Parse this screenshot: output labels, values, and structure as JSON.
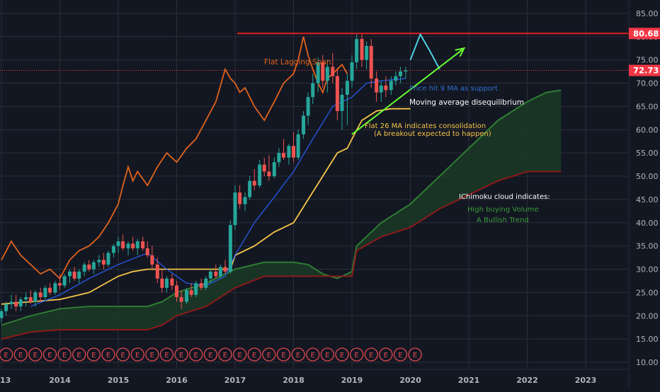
{
  "chart_data": {
    "type": "candlestick",
    "timeframe": "monthly",
    "xaxis": {
      "ticks": [
        "13",
        "2014",
        "2015",
        "2016",
        "2017",
        "2018",
        "2019",
        "2020",
        "2021",
        "2022",
        "2023"
      ]
    },
    "yaxis": {
      "ticks": [
        "85.00",
        "80.00",
        "75.00",
        "70.00",
        "65.00",
        "60.00",
        "55.00",
        "50.00",
        "45.00",
        "40.00",
        "35.00",
        "30.00",
        "25.00",
        "20.00",
        "15.00",
        "10.00"
      ],
      "range": [
        8.5,
        87.5
      ],
      "side": "right"
    },
    "price_labels": [
      {
        "value": 80.68,
        "text": "80.68",
        "color": "#f23645"
      },
      {
        "value": 72.73,
        "text": "72.73",
        "color": "#f23645"
      }
    ],
    "resistance_level": 80.68,
    "last_price": 72.73,
    "annotations": {
      "lagging_span": "Flat Lagging Span",
      "ma9_support": "Price hit 9 MA as support",
      "disequilibrium": "Moving average disequilibrium",
      "flat26_line1": "Flat 26 MA indicates consolidation",
      "flat26_line2": "(A breakout expected to happen)",
      "cloud_title": "IChimoku cloud indicates:",
      "cloud_line1": "High buying Volume",
      "cloud_line2": "A Bullish Trend"
    },
    "earnings_marker_label": "E",
    "colors": {
      "background": "#131722",
      "grid": "#2a2e39",
      "bull": "#26a69a",
      "bear": "#ef5350",
      "ma_fast": "#2962ff",
      "ma_slow": "#f7c548",
      "lagging_span": "#e0631c",
      "cloud_lead_a": "#2e7d32",
      "cloud_lead_b": "#8b1a1a",
      "cloud_fill": "#1b3a26",
      "projection": "#4dd0e1",
      "trend_arrow": "#66ff33",
      "resistance": "#e02020"
    },
    "candles": [
      {
        "x": 2013.0,
        "o": 19.5,
        "h": 21.5,
        "l": 18.5,
        "c": 21.0
      },
      {
        "x": 2013.08,
        "o": 21.0,
        "h": 23.0,
        "l": 20.0,
        "c": 22.5
      },
      {
        "x": 2013.17,
        "o": 22.5,
        "h": 24.5,
        "l": 21.5,
        "c": 23.0
      },
      {
        "x": 2013.25,
        "o": 23.0,
        "h": 24.5,
        "l": 21.0,
        "c": 22.0
      },
      {
        "x": 2013.33,
        "o": 22.0,
        "h": 24.0,
        "l": 21.0,
        "c": 23.5
      },
      {
        "x": 2013.42,
        "o": 23.5,
        "h": 25.0,
        "l": 22.0,
        "c": 24.0
      },
      {
        "x": 2013.5,
        "o": 24.0,
        "h": 25.5,
        "l": 22.5,
        "c": 23.0
      },
      {
        "x": 2013.58,
        "o": 23.0,
        "h": 25.5,
        "l": 22.0,
        "c": 25.0
      },
      {
        "x": 2013.67,
        "o": 25.0,
        "h": 26.0,
        "l": 23.0,
        "c": 24.0
      },
      {
        "x": 2013.75,
        "o": 24.0,
        "h": 26.5,
        "l": 23.5,
        "c": 26.0
      },
      {
        "x": 2013.83,
        "o": 26.0,
        "h": 27.0,
        "l": 24.5,
        "c": 25.0
      },
      {
        "x": 2013.92,
        "o": 25.0,
        "h": 27.5,
        "l": 24.5,
        "c": 27.0
      },
      {
        "x": 2014.0,
        "o": 27.0,
        "h": 29.0,
        "l": 25.5,
        "c": 26.5
      },
      {
        "x": 2014.08,
        "o": 26.5,
        "h": 29.0,
        "l": 26.0,
        "c": 28.5
      },
      {
        "x": 2014.17,
        "o": 28.5,
        "h": 30.0,
        "l": 27.0,
        "c": 29.5
      },
      {
        "x": 2014.25,
        "o": 29.5,
        "h": 30.5,
        "l": 27.5,
        "c": 28.0
      },
      {
        "x": 2014.33,
        "o": 28.0,
        "h": 30.0,
        "l": 27.0,
        "c": 29.5
      },
      {
        "x": 2014.42,
        "o": 29.5,
        "h": 31.5,
        "l": 28.5,
        "c": 31.0
      },
      {
        "x": 2014.5,
        "o": 31.0,
        "h": 32.0,
        "l": 29.5,
        "c": 30.0
      },
      {
        "x": 2014.58,
        "o": 30.0,
        "h": 32.0,
        "l": 29.0,
        "c": 31.5
      },
      {
        "x": 2014.67,
        "o": 31.5,
        "h": 33.0,
        "l": 30.5,
        "c": 32.0
      },
      {
        "x": 2014.75,
        "o": 32.0,
        "h": 33.5,
        "l": 30.0,
        "c": 31.0
      },
      {
        "x": 2014.83,
        "o": 31.0,
        "h": 34.0,
        "l": 30.5,
        "c": 33.5
      },
      {
        "x": 2014.92,
        "o": 33.5,
        "h": 35.5,
        "l": 32.5,
        "c": 35.0
      },
      {
        "x": 2015.0,
        "o": 35.0,
        "h": 37.0,
        "l": 33.5,
        "c": 36.0
      },
      {
        "x": 2015.08,
        "o": 36.0,
        "h": 37.5,
        "l": 34.0,
        "c": 34.5
      },
      {
        "x": 2015.17,
        "o": 34.5,
        "h": 36.0,
        "l": 33.0,
        "c": 35.5
      },
      {
        "x": 2015.25,
        "o": 35.5,
        "h": 37.0,
        "l": 34.0,
        "c": 34.5
      },
      {
        "x": 2015.33,
        "o": 34.5,
        "h": 36.5,
        "l": 33.0,
        "c": 36.0
      },
      {
        "x": 2015.42,
        "o": 36.0,
        "h": 37.0,
        "l": 34.0,
        "c": 34.5
      },
      {
        "x": 2015.5,
        "o": 34.5,
        "h": 36.0,
        "l": 32.5,
        "c": 33.0
      },
      {
        "x": 2015.58,
        "o": 33.0,
        "h": 35.0,
        "l": 30.0,
        "c": 31.0
      },
      {
        "x": 2015.67,
        "o": 31.0,
        "h": 32.5,
        "l": 27.0,
        "c": 28.0
      },
      {
        "x": 2015.75,
        "o": 28.0,
        "h": 30.0,
        "l": 25.0,
        "c": 26.0
      },
      {
        "x": 2015.83,
        "o": 26.0,
        "h": 28.5,
        "l": 25.0,
        "c": 28.0
      },
      {
        "x": 2015.92,
        "o": 28.0,
        "h": 29.0,
        "l": 25.5,
        "c": 26.5
      },
      {
        "x": 2016.0,
        "o": 26.5,
        "h": 27.5,
        "l": 23.0,
        "c": 24.0
      },
      {
        "x": 2016.08,
        "o": 24.0,
        "h": 25.5,
        "l": 21.5,
        "c": 23.0
      },
      {
        "x": 2016.17,
        "o": 23.0,
        "h": 26.0,
        "l": 22.5,
        "c": 25.5
      },
      {
        "x": 2016.25,
        "o": 25.5,
        "h": 27.0,
        "l": 24.0,
        "c": 24.5
      },
      {
        "x": 2016.33,
        "o": 24.5,
        "h": 27.5,
        "l": 24.0,
        "c": 27.0
      },
      {
        "x": 2016.42,
        "o": 27.0,
        "h": 28.0,
        "l": 25.5,
        "c": 26.0
      },
      {
        "x": 2016.5,
        "o": 26.0,
        "h": 28.5,
        "l": 25.5,
        "c": 28.0
      },
      {
        "x": 2016.58,
        "o": 28.0,
        "h": 30.0,
        "l": 27.0,
        "c": 29.5
      },
      {
        "x": 2016.67,
        "o": 29.5,
        "h": 31.0,
        "l": 28.0,
        "c": 28.5
      },
      {
        "x": 2016.75,
        "o": 28.5,
        "h": 31.0,
        "l": 28.0,
        "c": 30.5
      },
      {
        "x": 2016.83,
        "o": 30.5,
        "h": 32.0,
        "l": 29.0,
        "c": 29.5
      },
      {
        "x": 2016.92,
        "o": 29.5,
        "h": 40.5,
        "l": 29.0,
        "c": 39.5
      },
      {
        "x": 2017.0,
        "o": 39.5,
        "h": 48.0,
        "l": 38.5,
        "c": 46.5
      },
      {
        "x": 2017.08,
        "o": 46.5,
        "h": 48.0,
        "l": 43.0,
        "c": 44.0
      },
      {
        "x": 2017.17,
        "o": 44.0,
        "h": 46.5,
        "l": 42.5,
        "c": 45.5
      },
      {
        "x": 2017.25,
        "o": 45.5,
        "h": 50.0,
        "l": 45.0,
        "c": 49.0
      },
      {
        "x": 2017.33,
        "o": 49.0,
        "h": 51.5,
        "l": 47.0,
        "c": 48.0
      },
      {
        "x": 2017.42,
        "o": 48.0,
        "h": 53.5,
        "l": 47.5,
        "c": 52.5
      },
      {
        "x": 2017.5,
        "o": 52.5,
        "h": 54.0,
        "l": 50.0,
        "c": 51.0
      },
      {
        "x": 2017.58,
        "o": 51.0,
        "h": 54.5,
        "l": 49.0,
        "c": 50.0
      },
      {
        "x": 2017.67,
        "o": 50.0,
        "h": 54.0,
        "l": 49.5,
        "c": 53.0
      },
      {
        "x": 2017.75,
        "o": 53.0,
        "h": 56.0,
        "l": 52.0,
        "c": 55.0
      },
      {
        "x": 2017.83,
        "o": 55.0,
        "h": 58.0,
        "l": 53.5,
        "c": 54.0
      },
      {
        "x": 2017.92,
        "o": 54.0,
        "h": 57.0,
        "l": 52.5,
        "c": 56.5
      },
      {
        "x": 2018.0,
        "o": 56.5,
        "h": 59.5,
        "l": 53.0,
        "c": 54.0
      },
      {
        "x": 2018.08,
        "o": 54.0,
        "h": 60.0,
        "l": 53.5,
        "c": 59.0
      },
      {
        "x": 2018.17,
        "o": 59.0,
        "h": 64.0,
        "l": 58.0,
        "c": 63.0
      },
      {
        "x": 2018.25,
        "o": 63.0,
        "h": 68.0,
        "l": 61.0,
        "c": 67.0
      },
      {
        "x": 2018.33,
        "o": 67.0,
        "h": 72.0,
        "l": 65.5,
        "c": 70.0
      },
      {
        "x": 2018.42,
        "o": 70.0,
        "h": 75.5,
        "l": 68.0,
        "c": 74.5
      },
      {
        "x": 2018.5,
        "o": 74.5,
        "h": 76.0,
        "l": 69.0,
        "c": 70.5
      },
      {
        "x": 2018.58,
        "o": 70.5,
        "h": 75.0,
        "l": 68.0,
        "c": 73.5
      },
      {
        "x": 2018.67,
        "o": 73.5,
        "h": 76.5,
        "l": 70.0,
        "c": 71.5
      },
      {
        "x": 2018.75,
        "o": 71.5,
        "h": 73.0,
        "l": 62.0,
        "c": 64.0
      },
      {
        "x": 2018.83,
        "o": 64.0,
        "h": 69.0,
        "l": 60.0,
        "c": 67.5
      },
      {
        "x": 2018.92,
        "o": 67.5,
        "h": 72.0,
        "l": 61.0,
        "c": 70.5
      },
      {
        "x": 2019.0,
        "o": 70.5,
        "h": 76.0,
        "l": 69.0,
        "c": 74.5
      },
      {
        "x": 2019.08,
        "o": 74.5,
        "h": 80.5,
        "l": 73.0,
        "c": 79.5
      },
      {
        "x": 2019.17,
        "o": 79.5,
        "h": 80.5,
        "l": 73.5,
        "c": 75.0
      },
      {
        "x": 2019.25,
        "o": 75.0,
        "h": 79.0,
        "l": 73.0,
        "c": 78.0
      },
      {
        "x": 2019.33,
        "o": 78.0,
        "h": 79.5,
        "l": 69.0,
        "c": 71.0
      },
      {
        "x": 2019.42,
        "o": 71.0,
        "h": 72.5,
        "l": 66.0,
        "c": 68.0
      },
      {
        "x": 2019.5,
        "o": 68.0,
        "h": 70.5,
        "l": 66.0,
        "c": 69.5
      },
      {
        "x": 2019.58,
        "o": 69.5,
        "h": 71.5,
        "l": 67.0,
        "c": 68.5
      },
      {
        "x": 2019.67,
        "o": 68.5,
        "h": 71.5,
        "l": 67.5,
        "c": 70.5
      },
      {
        "x": 2019.75,
        "o": 70.5,
        "h": 72.5,
        "l": 69.5,
        "c": 71.5
      },
      {
        "x": 2019.83,
        "o": 71.5,
        "h": 73.5,
        "l": 70.0,
        "c": 72.5
      },
      {
        "x": 2019.92,
        "o": 72.5,
        "h": 73.5,
        "l": 71.0,
        "c": 72.73
      }
    ],
    "ma9": [
      [
        2013.5,
        22
      ],
      [
        2014.0,
        24.5
      ],
      [
        2014.5,
        28
      ],
      [
        2015.0,
        31
      ],
      [
        2015.5,
        33.5
      ],
      [
        2015.83,
        30
      ],
      [
        2016.17,
        27
      ],
      [
        2016.5,
        26.5
      ],
      [
        2016.83,
        28.5
      ],
      [
        2017.0,
        33
      ],
      [
        2017.33,
        40
      ],
      [
        2017.67,
        45.5
      ],
      [
        2018.0,
        51
      ],
      [
        2018.33,
        58
      ],
      [
        2018.67,
        65
      ],
      [
        2019.0,
        67
      ],
      [
        2019.25,
        70
      ],
      [
        2019.5,
        70.5
      ],
      [
        2019.92,
        71
      ]
    ],
    "ma26": [
      [
        2013.0,
        22.5
      ],
      [
        2013.5,
        23
      ],
      [
        2014.0,
        23.5
      ],
      [
        2014.5,
        25
      ],
      [
        2015.0,
        28.5
      ],
      [
        2015.25,
        29.5
      ],
      [
        2015.5,
        30
      ],
      [
        2016.0,
        30
      ],
      [
        2016.5,
        30
      ],
      [
        2016.92,
        30
      ],
      [
        2017.0,
        33
      ],
      [
        2017.33,
        35
      ],
      [
        2017.67,
        38
      ],
      [
        2018.0,
        40
      ],
      [
        2018.25,
        45
      ],
      [
        2018.5,
        50
      ],
      [
        2018.75,
        55
      ],
      [
        2018.92,
        56
      ],
      [
        2019.0,
        58
      ],
      [
        2019.17,
        62
      ],
      [
        2019.42,
        64
      ],
      [
        2019.67,
        64.5
      ],
      [
        2020.0,
        64.5
      ]
    ],
    "lagging_span_line": [
      [
        2013.0,
        32
      ],
      [
        2013.17,
        36
      ],
      [
        2013.33,
        33
      ],
      [
        2013.5,
        31
      ],
      [
        2013.67,
        29
      ],
      [
        2013.83,
        30
      ],
      [
        2014.0,
        28
      ],
      [
        2014.17,
        32
      ],
      [
        2014.33,
        34
      ],
      [
        2014.5,
        35
      ],
      [
        2014.67,
        37
      ],
      [
        2014.83,
        40
      ],
      [
        2015.0,
        44
      ],
      [
        2015.08,
        48
      ],
      [
        2015.17,
        52
      ],
      [
        2015.25,
        49
      ],
      [
        2015.33,
        51
      ],
      [
        2015.5,
        48
      ],
      [
        2015.67,
        52
      ],
      [
        2015.83,
        55
      ],
      [
        2016.0,
        53
      ],
      [
        2016.17,
        56
      ],
      [
        2016.33,
        58
      ],
      [
        2016.5,
        62
      ],
      [
        2016.67,
        66
      ],
      [
        2016.83,
        73
      ],
      [
        2016.92,
        71
      ],
      [
        2017.0,
        70
      ],
      [
        2017.08,
        68
      ],
      [
        2017.17,
        69
      ],
      [
        2017.33,
        65
      ],
      [
        2017.5,
        62
      ],
      [
        2017.67,
        66
      ],
      [
        2017.83,
        70
      ],
      [
        2018.0,
        72
      ],
      [
        2018.08,
        75
      ],
      [
        2018.17,
        80
      ],
      [
        2018.25,
        76
      ],
      [
        2018.33,
        73
      ],
      [
        2018.42,
        70
      ],
      [
        2018.5,
        68
      ],
      [
        2018.58,
        71
      ],
      [
        2018.67,
        72
      ],
      [
        2018.83,
        74
      ],
      [
        2018.92,
        72
      ]
    ],
    "cloud_lead_a": [
      [
        2013.0,
        18
      ],
      [
        2013.5,
        20
      ],
      [
        2014.0,
        21.5
      ],
      [
        2014.5,
        22
      ],
      [
        2015.0,
        22
      ],
      [
        2015.5,
        22
      ],
      [
        2015.75,
        23
      ],
      [
        2016.0,
        25
      ],
      [
        2016.5,
        27
      ],
      [
        2017.0,
        30
      ],
      [
        2017.5,
        31.5
      ],
      [
        2018.0,
        31.5
      ],
      [
        2018.25,
        31
      ],
      [
        2018.5,
        29
      ],
      [
        2018.75,
        28
      ],
      [
        2019.0,
        29.5
      ],
      [
        2019.08,
        35
      ],
      [
        2019.5,
        40
      ],
      [
        2020.0,
        44
      ],
      [
        2020.5,
        50
      ],
      [
        2021.0,
        56
      ],
      [
        2021.5,
        62
      ],
      [
        2022.0,
        66
      ],
      [
        2022.33,
        68
      ],
      [
        2022.58,
        68.5
      ]
    ],
    "cloud_lead_b": [
      [
        2013.0,
        15
      ],
      [
        2013.5,
        16.5
      ],
      [
        2014.0,
        17
      ],
      [
        2014.5,
        17
      ],
      [
        2015.0,
        17
      ],
      [
        2015.5,
        17
      ],
      [
        2015.75,
        18
      ],
      [
        2016.0,
        20
      ],
      [
        2016.5,
        22
      ],
      [
        2017.0,
        26
      ],
      [
        2017.5,
        28.5
      ],
      [
        2018.0,
        28.5
      ],
      [
        2018.5,
        28.5
      ],
      [
        2019.0,
        28.5
      ],
      [
        2019.08,
        34
      ],
      [
        2019.5,
        37
      ],
      [
        2020.0,
        39
      ],
      [
        2020.5,
        43
      ],
      [
        2021.0,
        46
      ],
      [
        2021.5,
        49
      ],
      [
        2022.0,
        51
      ],
      [
        2022.58,
        51
      ]
    ],
    "projection_line": [
      [
        2020.0,
        75
      ],
      [
        2020.17,
        80.5
      ],
      [
        2020.33,
        77
      ],
      [
        2020.5,
        73
      ]
    ],
    "trend_arrow_line": [
      [
        2019.0,
        59
      ],
      [
        2020.92,
        77.5
      ]
    ],
    "earnings_markers": [
      2013.08,
      2013.33,
      2013.58,
      2013.83,
      2014.08,
      2014.33,
      2014.58,
      2014.83,
      2015.08,
      2015.33,
      2015.58,
      2015.83,
      2016.08,
      2016.33,
      2016.58,
      2016.83,
      2017.08,
      2017.33,
      2017.58,
      2017.83,
      2018.08,
      2018.33,
      2018.58,
      2018.83,
      2019.08,
      2019.33,
      2019.58,
      2019.83,
      2020.08
    ]
  }
}
